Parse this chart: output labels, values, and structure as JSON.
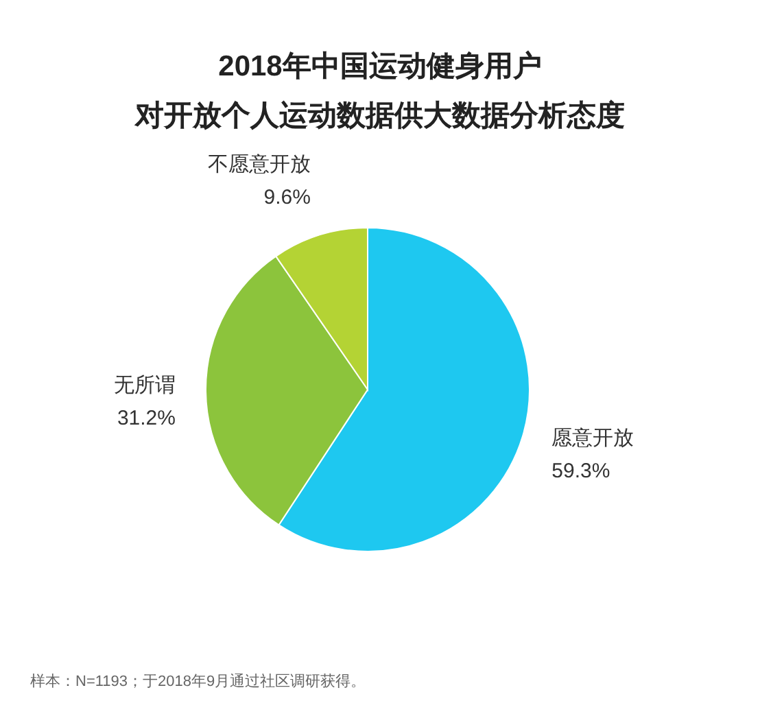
{
  "chart_data": {
    "type": "pie",
    "title": "2018年中国运动健身用户",
    "subtitle": "对开放个人运动数据供大数据分析态度",
    "categories": [
      "愿意开放",
      "无所谓",
      "不愿意开放"
    ],
    "values": [
      59.3,
      31.2,
      9.6
    ],
    "value_labels": [
      "59.3%",
      "31.2%",
      "9.6%"
    ],
    "colors": [
      "#1ec8f0",
      "#8cc43c",
      "#b4d334"
    ],
    "annotations": [
      "样本：N=1193；于2018年9月通过社区调研获得。"
    ]
  }
}
